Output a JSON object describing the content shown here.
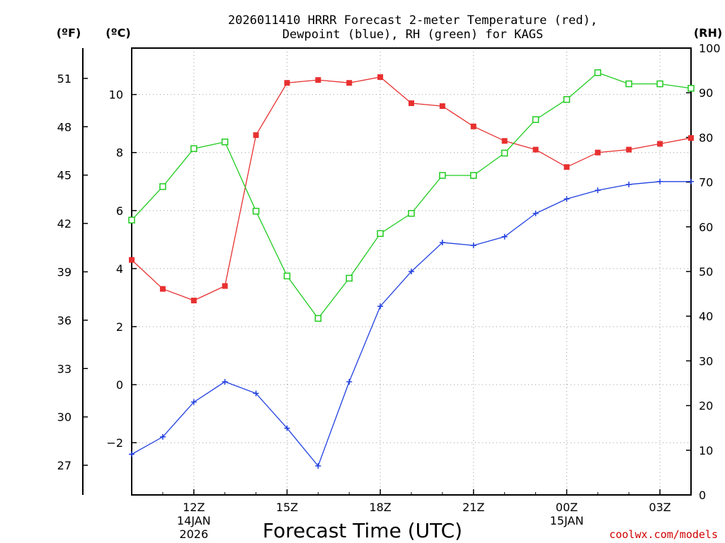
{
  "chart_data": {
    "type": "line",
    "title_line1": "2026011410 HRRR Forecast 2-meter Temperature (red),",
    "title_line2": "Dewpoint (blue), RH (green) for KAGS",
    "xlabel": "Forecast Time (UTC)",
    "credit": "coolwx.com/models",
    "units": {
      "fahrenheit": "(ºF)",
      "celsius": "(ºC)",
      "rh": "(RH)"
    },
    "x_hours": [
      10,
      11,
      12,
      13,
      14,
      15,
      16,
      17,
      18,
      19,
      20,
      21,
      22,
      23,
      24,
      25,
      26,
      27,
      28
    ],
    "x_ticks": [
      {
        "hour": 12,
        "label": "12Z",
        "sub1": "14JAN",
        "sub2": "2026"
      },
      {
        "hour": 15,
        "label": "15Z",
        "sub1": "",
        "sub2": ""
      },
      {
        "hour": 18,
        "label": "18Z",
        "sub1": "",
        "sub2": ""
      },
      {
        "hour": 21,
        "label": "21Z",
        "sub1": "",
        "sub2": ""
      },
      {
        "hour": 24,
        "label": "00Z",
        "sub1": "15JAN",
        "sub2": ""
      },
      {
        "hour": 27,
        "label": "03Z",
        "sub1": "",
        "sub2": ""
      }
    ],
    "xlim": [
      10,
      28
    ],
    "ylim_celsius": [
      -3.8,
      11.6
    ],
    "y_ticks_celsius": [
      -2,
      0,
      2,
      4,
      6,
      8,
      10
    ],
    "y_ticks_fahrenheit": [
      27,
      30,
      33,
      36,
      39,
      42,
      45,
      48,
      51
    ],
    "ylim_rh": [
      0,
      100
    ],
    "y_ticks_rh": [
      0,
      10,
      20,
      30,
      40,
      50,
      60,
      70,
      80,
      90,
      100
    ],
    "series": [
      {
        "name": "Temperature",
        "axis": "celsius",
        "color": "#e83030",
        "marker": "filled-square",
        "values": [
          4.3,
          3.3,
          2.9,
          3.4,
          8.6,
          10.4,
          10.5,
          10.4,
          10.6,
          9.7,
          9.6,
          8.9,
          8.4,
          8.1,
          7.5,
          8.0,
          8.1,
          8.3,
          8.5
        ]
      },
      {
        "name": "Dewpoint",
        "axis": "celsius",
        "color": "#2040e0",
        "marker": "plus",
        "values": [
          -2.4,
          -1.8,
          -0.6,
          0.1,
          -0.3,
          -1.5,
          -2.8,
          0.1,
          2.7,
          3.9,
          4.9,
          4.8,
          5.1,
          5.9,
          6.4,
          6.7,
          6.9,
          7.0,
          7.0
        ]
      },
      {
        "name": "RH",
        "axis": "rh",
        "color": "#20cc20",
        "marker": "open-square",
        "values": [
          61.5,
          69,
          77.5,
          79,
          63.5,
          49,
          39.5,
          48.5,
          58.5,
          63,
          71.5,
          71.5,
          76.5,
          84,
          88.5,
          94.5,
          92,
          92,
          91
        ]
      }
    ]
  }
}
